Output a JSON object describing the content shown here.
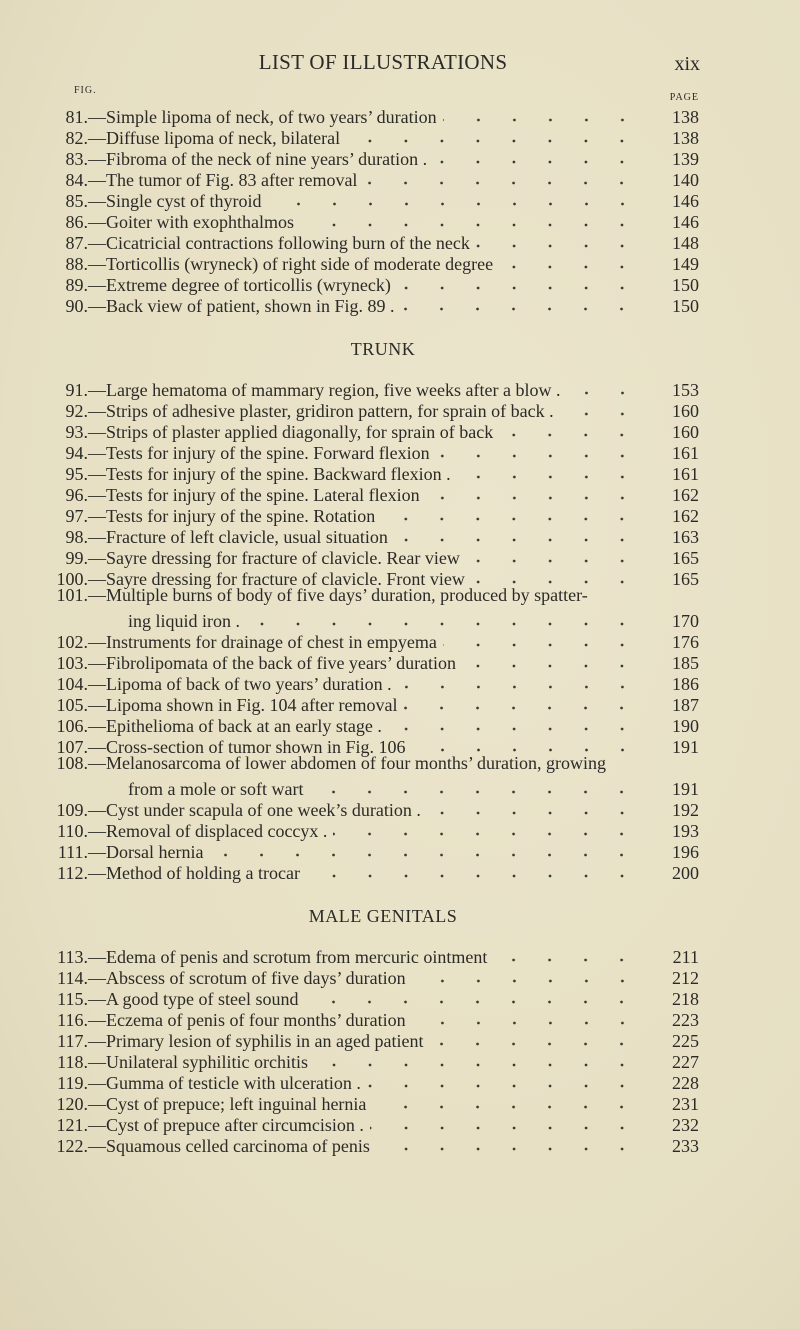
{
  "header": {
    "title": "LIST OF ILLUSTRATIONS",
    "folio": "xix"
  },
  "column_heads": {
    "fig": "FIG.",
    "page": "PAGE"
  },
  "sections": [
    {
      "heading": "",
      "entries": [
        {
          "num": "81.",
          "text": "—Simple lipoma of neck, of two years’ duration",
          "page": "138"
        },
        {
          "num": "82.",
          "text": "—Diffuse lipoma of neck, bilateral",
          "page": "138"
        },
        {
          "num": "83.",
          "text": "—Fibroma of the neck of nine years’ duration .",
          "page": "139"
        },
        {
          "num": "84.",
          "text": "—The tumor of Fig. 83 after removal",
          "page": "140"
        },
        {
          "num": "85.",
          "text": "—Single cyst of thyroid",
          "page": "146"
        },
        {
          "num": "86.",
          "text": "—Goiter with exophthalmos",
          "page": "146"
        },
        {
          "num": "87.",
          "text": "—Cicatricial contractions following burn of the neck",
          "page": "148"
        },
        {
          "num": "88.",
          "text": "—Torticollis (wryneck) of right side of moderate degree",
          "page": "149"
        },
        {
          "num": "89.",
          "text": "—Extreme degree of torticollis (wryneck)",
          "page": "150"
        },
        {
          "num": "90.",
          "text": "—Back view of patient, shown in Fig. 89 .",
          "page": "150"
        }
      ]
    },
    {
      "heading": "TRUNK",
      "entries": [
        {
          "num": "91.",
          "text": "—Large hematoma of mammary region, five weeks after a blow .",
          "page": "153"
        },
        {
          "num": "92.",
          "text": "—Strips of adhesive plaster, gridiron pattern, for sprain of back .",
          "page": "160"
        },
        {
          "num": "93.",
          "text": "—Strips of plaster applied diagonally, for sprain of back",
          "page": "160"
        },
        {
          "num": "94.",
          "text": "—Tests for injury of the spine.   Forward flexion",
          "page": "161"
        },
        {
          "num": "95.",
          "text": "—Tests for injury of the spine.   Backward flexion .",
          "page": "161"
        },
        {
          "num": "96.",
          "text": "—Tests for injury of the spine.   Lateral flexion",
          "page": "162"
        },
        {
          "num": "97.",
          "text": "—Tests for injury of the spine.   Rotation",
          "page": "162"
        },
        {
          "num": "98.",
          "text": "—Fracture of left clavicle, usual situation",
          "page": "163"
        },
        {
          "num": "99.",
          "text": "—Sayre dressing for fracture of clavicle.   Rear view",
          "page": "165"
        },
        {
          "num": "100.",
          "text": "—Sayre dressing for fracture of clavicle.   Front view",
          "page": "165"
        },
        {
          "num": "101.",
          "text": "—Multiple burns of body of five days’ duration, produced by spatter-",
          "continuation": "ing liquid iron .",
          "page": "170"
        },
        {
          "num": "102.",
          "text": "—Instruments for drainage of chest in empyema",
          "page": "176"
        },
        {
          "num": "103.",
          "text": "—Fibrolipomata of the back of five years’ duration",
          "page": "185"
        },
        {
          "num": "104.",
          "text": "—Lipoma of back of two years’ duration .",
          "page": "186"
        },
        {
          "num": "105.",
          "text": "—Lipoma shown in Fig. 104 after removal",
          "page": "187"
        },
        {
          "num": "106.",
          "text": "—Epithelioma of back at an early stage .",
          "page": "190"
        },
        {
          "num": "107.",
          "text": "—Cross-section of tumor shown in Fig. 106",
          "page": "191"
        },
        {
          "num": "108.",
          "text": "—Melanosarcoma of lower abdomen of four months’ duration, growing",
          "continuation": "from a mole or soft wart",
          "page": "191"
        },
        {
          "num": "109.",
          "text": "—Cyst under scapula of one week’s duration .",
          "page": "192"
        },
        {
          "num": "110.",
          "text": "—Removal of displaced coccyx .",
          "page": "193"
        },
        {
          "num": "111.",
          "text": "—Dorsal hernia",
          "page": "196"
        },
        {
          "num": "112.",
          "text": "—Method of holding a trocar",
          "page": "200"
        }
      ]
    },
    {
      "heading": "MALE GENITALS",
      "entries": [
        {
          "num": "113.",
          "text": "—Edema of penis and scrotum from mercuric ointment",
          "page": "211"
        },
        {
          "num": "114.",
          "text": "—Abscess of scrotum of five days’ duration",
          "page": "212"
        },
        {
          "num": "115.",
          "text": "—A good type of steel sound",
          "page": "218"
        },
        {
          "num": "116.",
          "text": "—Eczema of penis of four months’ duration",
          "page": "223"
        },
        {
          "num": "117.",
          "text": "—Primary lesion of syphilis in an aged patient",
          "page": "225"
        },
        {
          "num": "118.",
          "text": "—Unilateral syphilitic orchitis",
          "page": "227"
        },
        {
          "num": "119.",
          "text": "—Gumma of testicle with ulceration .",
          "page": "228"
        },
        {
          "num": "120.",
          "text": "—Cyst of prepuce; left inguinal hernia",
          "page": "231"
        },
        {
          "num": "121.",
          "text": "—Cyst of prepuce after circumcision .",
          "page": "232"
        },
        {
          "num": "122.",
          "text": "—Squamous celled carcinoma of penis",
          "page": "233"
        }
      ]
    }
  ]
}
